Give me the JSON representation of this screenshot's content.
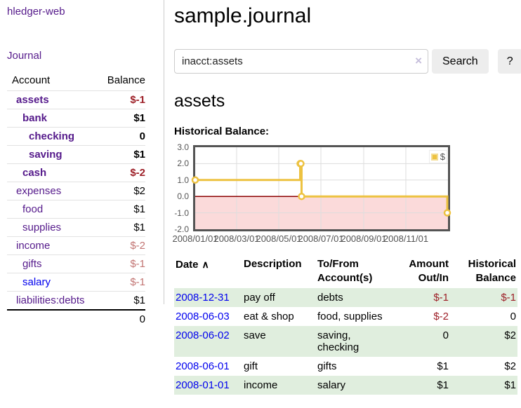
{
  "sidebar": {
    "app_title": "hledger-web",
    "journal_link": "Journal",
    "accounts": {
      "header_account": "Account",
      "header_balance": "Balance",
      "rows": [
        {
          "name": "assets",
          "indent": 1,
          "bold": true,
          "balance": "$-1",
          "balance_style": "negative-strong"
        },
        {
          "name": "bank",
          "indent": 2,
          "bold": true,
          "balance": "$1",
          "balance_style": ""
        },
        {
          "name": "checking",
          "indent": 3,
          "bold": true,
          "balance": "0",
          "balance_style": ""
        },
        {
          "name": "saving",
          "indent": 3,
          "bold": true,
          "balance": "$1",
          "balance_style": ""
        },
        {
          "name": "cash",
          "indent": 2,
          "bold": true,
          "balance": "$-2",
          "balance_style": "negative-strong"
        },
        {
          "name": "expenses",
          "indent": 1,
          "bold": false,
          "balance": "$2",
          "balance_style": ""
        },
        {
          "name": "food",
          "indent": 2,
          "bold": false,
          "balance": "$1",
          "balance_style": ""
        },
        {
          "name": "supplies",
          "indent": 2,
          "bold": false,
          "balance": "$1",
          "balance_style": ""
        },
        {
          "name": "income",
          "indent": 1,
          "bold": false,
          "balance": "$-2",
          "balance_style": "negative-soft"
        },
        {
          "name": "gifts",
          "indent": 2,
          "bold": false,
          "balance": "$-1",
          "balance_style": "negative-soft"
        },
        {
          "name": "salary",
          "indent": 2,
          "bold": false,
          "balance": "$-1",
          "balance_style": "negative-soft",
          "link_state": "unvisited"
        },
        {
          "name": "liabilities:debts",
          "indent": 1,
          "bold": false,
          "balance": "$1",
          "balance_style": ""
        }
      ],
      "total": "0"
    }
  },
  "main": {
    "title": "sample.journal",
    "search": {
      "value": "inacct:assets",
      "clear_icon": "×",
      "button_label": "Search",
      "help_label": "?"
    },
    "account_heading": "assets",
    "chart_label": "Historical Balance:"
  },
  "chart_data": {
    "type": "line",
    "step": true,
    "title": "Historical Balance:",
    "series": [
      {
        "name": "$",
        "color": "#edc240",
        "points": [
          [
            "2008-01-01",
            1
          ],
          [
            "2008-06-01",
            2
          ],
          [
            "2008-06-02",
            2
          ],
          [
            "2008-06-03",
            0
          ],
          [
            "2008-12-31",
            -1
          ]
        ]
      }
    ],
    "x_ticks": [
      {
        "label": "2008/01/01",
        "date": "2008-01-01"
      },
      {
        "label": "2008/03/01",
        "date": "2008-03-01"
      },
      {
        "label": "2008/05/01",
        "date": "2008-05-01"
      },
      {
        "label": "2008/07/01",
        "date": "2008-07-01"
      },
      {
        "label": "2008/09/01",
        "date": "2008-09-01"
      },
      {
        "label": "2008/11/01",
        "date": "2008-11-01"
      }
    ],
    "y_ticks": [
      {
        "label": "3.0",
        "value": 3
      },
      {
        "label": "2.0",
        "value": 2
      },
      {
        "label": "1.0",
        "value": 1
      },
      {
        "label": "0.0",
        "value": 0
      },
      {
        "label": "-1.0",
        "value": -1
      },
      {
        "label": "-2.0",
        "value": -2
      }
    ],
    "xlim": [
      "2008-01-01",
      "2009-01-01"
    ],
    "ylim": [
      -2,
      3
    ],
    "legend": {
      "label": "$",
      "position": "top-right"
    },
    "grid": true,
    "colors": {
      "series": "#edc240",
      "marker_fill": "#ffffff",
      "negative_region": "#fbdada",
      "zero_line": "#8b0000",
      "grid": "#dddddd",
      "border": "#545454",
      "tick_text": "#545454"
    }
  },
  "register": {
    "headers": [
      {
        "label": "Date",
        "sort_icon": "∧",
        "align": "left"
      },
      {
        "label": "Description",
        "align": "left"
      },
      {
        "label": "To/From Account(s)",
        "align": "left"
      },
      {
        "label": "Amount Out/In",
        "align": "right"
      },
      {
        "label": "Historical Balance",
        "align": "right"
      }
    ],
    "rows": [
      {
        "date": "2008-12-31",
        "description": "pay off",
        "accounts": "debts",
        "amount": "$-1",
        "amount_negative": true,
        "balance": "$-1",
        "balance_negative": true
      },
      {
        "date": "2008-06-03",
        "description": "eat & shop",
        "accounts": "food, supplies",
        "amount": "$-2",
        "amount_negative": true,
        "balance": "0",
        "balance_negative": false
      },
      {
        "date": "2008-06-02",
        "description": "save",
        "accounts": "saving, checking",
        "amount": "0",
        "amount_negative": false,
        "balance": "$2",
        "balance_negative": false
      },
      {
        "date": "2008-06-01",
        "description": "gift",
        "accounts": "gifts",
        "amount": "$1",
        "amount_negative": false,
        "balance": "$2",
        "balance_negative": false
      },
      {
        "date": "2008-01-01",
        "description": "income",
        "accounts": "salary",
        "amount": "$1",
        "amount_negative": false,
        "balance": "$1",
        "balance_negative": false
      }
    ]
  },
  "colors": {
    "link_visited": "#551a8b",
    "link_unvisited": "#0000ee",
    "negative_strong": "#9d1f27",
    "negative_soft": "#c27573",
    "row_green": "#e0eede",
    "button_bg": "#ededed"
  }
}
